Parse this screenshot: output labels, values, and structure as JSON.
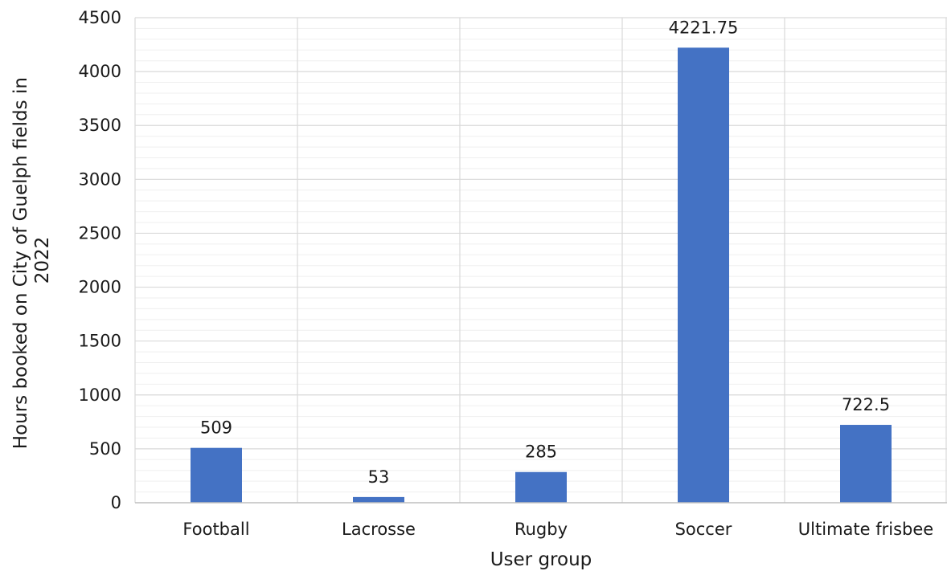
{
  "chart_data": {
    "type": "bar",
    "categories": [
      "Football",
      "Lacrosse",
      "Rugby",
      "Soccer",
      "Ultimate frisbee"
    ],
    "values": [
      509,
      53,
      285,
      4221.75,
      722.5
    ],
    "data_labels": [
      "509",
      "53",
      "285",
      "4221.75",
      "722.5"
    ],
    "title": "",
    "xlabel": "User group",
    "ylabel_lines": [
      "Hours booked on City of Guelph fields in",
      "2022"
    ],
    "ylim": [
      0,
      4500
    ],
    "yticks": [
      0,
      500,
      1000,
      1500,
      2000,
      2500,
      3000,
      3500,
      4000,
      4500
    ],
    "minor_step": 100,
    "grid": true,
    "legend": "none",
    "bar_color": "#4472C4",
    "major_grid_color": "#d9d9d9",
    "minor_grid_color": "#efefef"
  }
}
